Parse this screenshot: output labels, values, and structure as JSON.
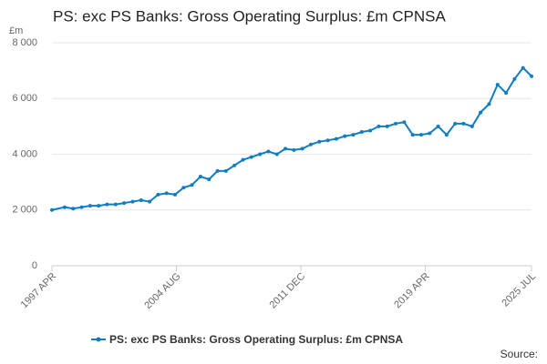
{
  "chart_data": {
    "type": "line",
    "title": "PS: exc PS Banks: Gross Operating Surplus: £m CPNSA",
    "y_unit": "£m",
    "source": "Source:",
    "grid": true,
    "legend": "bottom",
    "x": [
      1997.25,
      1998,
      1998.5,
      1999,
      1999.5,
      2000,
      2000.5,
      2001,
      2001.5,
      2002,
      2002.5,
      2003,
      2003.5,
      2004,
      2004.5,
      2005,
      2005.5,
      2006,
      2006.5,
      2007,
      2007.5,
      2008,
      2008.5,
      2009,
      2009.5,
      2010,
      2010.5,
      2011,
      2011.5,
      2012,
      2012.5,
      2013,
      2013.5,
      2014,
      2014.5,
      2015,
      2015.5,
      2016,
      2016.5,
      2017,
      2017.5,
      2018,
      2018.5,
      2019,
      2019.5,
      2020,
      2020.5,
      2021,
      2021.5,
      2022,
      2022.5,
      2023,
      2023.5,
      2024,
      2024.5,
      2025,
      2025.5
    ],
    "series": [
      {
        "name": "PS: exc PS Banks: Gross Operating Surplus: £m CPNSA",
        "color": "#0f7dc2",
        "values": [
          2000,
          2100,
          2050,
          2100,
          2150,
          2150,
          2200,
          2200,
          2250,
          2300,
          2350,
          2300,
          2550,
          2600,
          2550,
          2800,
          2900,
          3200,
          3100,
          3400,
          3400,
          3600,
          3800,
          3900,
          4000,
          4100,
          4000,
          4200,
          4150,
          4200,
          4350,
          4450,
          4500,
          4550,
          4650,
          4700,
          4800,
          4850,
          5000,
          5000,
          5100,
          5150,
          4700,
          4700,
          4750,
          5000,
          4700,
          5100,
          5100,
          5000,
          5500,
          5800,
          6500,
          6200,
          6700,
          7100,
          6800
        ]
      }
    ],
    "xlim": [
      1997.25,
      2025.5
    ],
    "xticks": [
      {
        "value": 1997.25,
        "label": "1997 APR"
      },
      {
        "value": 2004.583,
        "label": "2004 AUG"
      },
      {
        "value": 2011.917,
        "label": "2011 DEC"
      },
      {
        "value": 2019.25,
        "label": "2019 APR"
      },
      {
        "value": 2025.5,
        "label": "2025 JUL"
      }
    ],
    "ylim": [
      0,
      8000
    ],
    "yticks": [
      0,
      {
        "value": 2000,
        "label": "2 000"
      },
      {
        "value": 4000,
        "label": "4 000"
      },
      {
        "value": 6000,
        "label": "6 000"
      },
      {
        "value": 8000,
        "label": "8 000"
      }
    ]
  }
}
